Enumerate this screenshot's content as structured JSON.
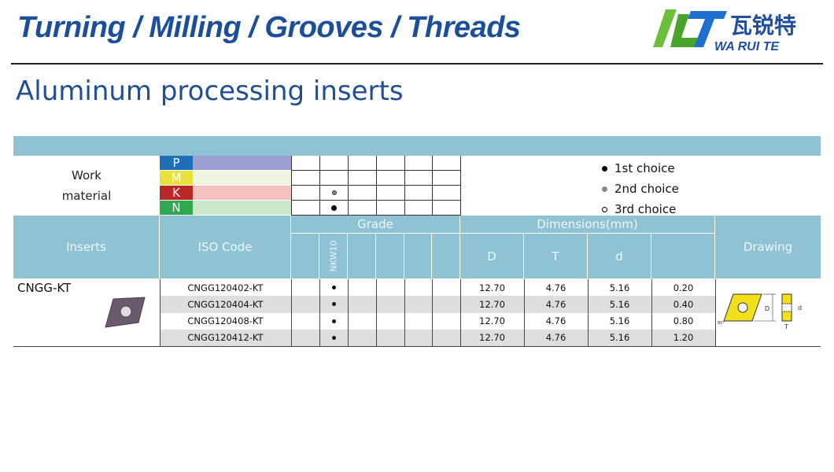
{
  "header": {
    "title": "Turning / Milling / Grooves / Threads",
    "logo_cn": "瓦锐特",
    "logo_en": "WA RUI TE"
  },
  "subtitle": "Aluminum processing inserts",
  "work_material": {
    "label_line1": "Work",
    "label_line2": "material",
    "materials": [
      {
        "code": "P",
        "color": "#1f6fb8",
        "bar": "#9a9fd0",
        "mark": ""
      },
      {
        "code": "M",
        "color": "#e8e23a",
        "bar": "#eef5de",
        "mark": ""
      },
      {
        "code": "K",
        "color": "#b82828",
        "bar": "#f5c0c0",
        "mark": "2nd"
      },
      {
        "code": "N",
        "color": "#2fa84f",
        "bar": "#cce6cc",
        "mark": "1st"
      }
    ]
  },
  "legend": {
    "first": "1st choice",
    "second": "2nd choice",
    "third": "3rd choice"
  },
  "table": {
    "inserts": "Inserts",
    "iso_code": "ISO Code",
    "grade": "Grade",
    "grade_name": "NKW10",
    "dimensions": "Dimensions(mm)",
    "dim_cols": [
      "D",
      "T",
      "d",
      ""
    ],
    "drawing": "Drawing",
    "insert_name": "CNGG-KT",
    "rows": [
      {
        "code": "CNGG120402-KT",
        "D": "12.70",
        "T": "4.76",
        "d": "5.16",
        "r": "0.20"
      },
      {
        "code": "CNGG120404-KT",
        "D": "12.70",
        "T": "4.76",
        "d": "5.16",
        "r": "0.40"
      },
      {
        "code": "CNGG120408-KT",
        "D": "12.70",
        "T": "4.76",
        "d": "5.16",
        "r": "0.80"
      },
      {
        "code": "CNGG120412-KT",
        "D": "12.70",
        "T": "4.76",
        "d": "5.16",
        "r": "1.20"
      }
    ]
  },
  "drawing_labels": {
    "D": "D",
    "d": "d",
    "T": "T",
    "angle": "80°"
  },
  "colors": {
    "header_bg": "#8fc3d4",
    "title": "#1b4f9c",
    "row_alt": "#dedede"
  }
}
